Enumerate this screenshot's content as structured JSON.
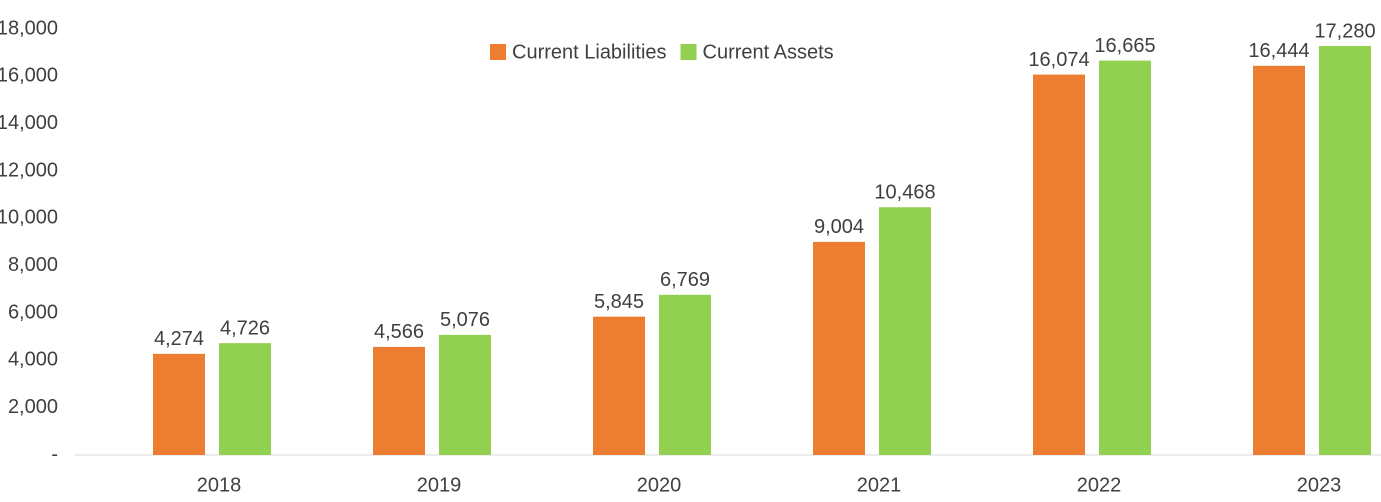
{
  "chart_data": {
    "type": "bar",
    "categories": [
      "2018",
      "2019",
      "2020",
      "2021",
      "2022",
      "2023"
    ],
    "series": [
      {
        "name": "Current Liabilities",
        "color": "#ed7d31",
        "values": [
          4274,
          4566,
          5845,
          9004,
          16074,
          16444
        ],
        "value_labels": [
          "4,274",
          "4,566",
          "5,845",
          "9,004",
          "16,074",
          "16,444"
        ]
      },
      {
        "name": "Current Assets",
        "color": "#92d050",
        "values": [
          4726,
          5076,
          6769,
          10468,
          16665,
          17280
        ],
        "value_labels": [
          "4,726",
          "5,076",
          "6,769",
          "10,468",
          "16,665",
          "17,280"
        ]
      }
    ],
    "ylim": [
      0,
      18000
    ],
    "yticks": [
      {
        "value": 0,
        "label": "-"
      },
      {
        "value": 2000,
        "label": "2,000"
      },
      {
        "value": 4000,
        "label": "4,000"
      },
      {
        "value": 6000,
        "label": "6,000"
      },
      {
        "value": 8000,
        "label": "8,000"
      },
      {
        "value": 10000,
        "label": "10,000"
      },
      {
        "value": 12000,
        "label": "12,000"
      },
      {
        "value": 14000,
        "label": "14,000"
      },
      {
        "value": 16000,
        "label": "16,000"
      },
      {
        "value": 18000,
        "label": "18,000"
      }
    ],
    "grid": false,
    "legend": "top"
  }
}
